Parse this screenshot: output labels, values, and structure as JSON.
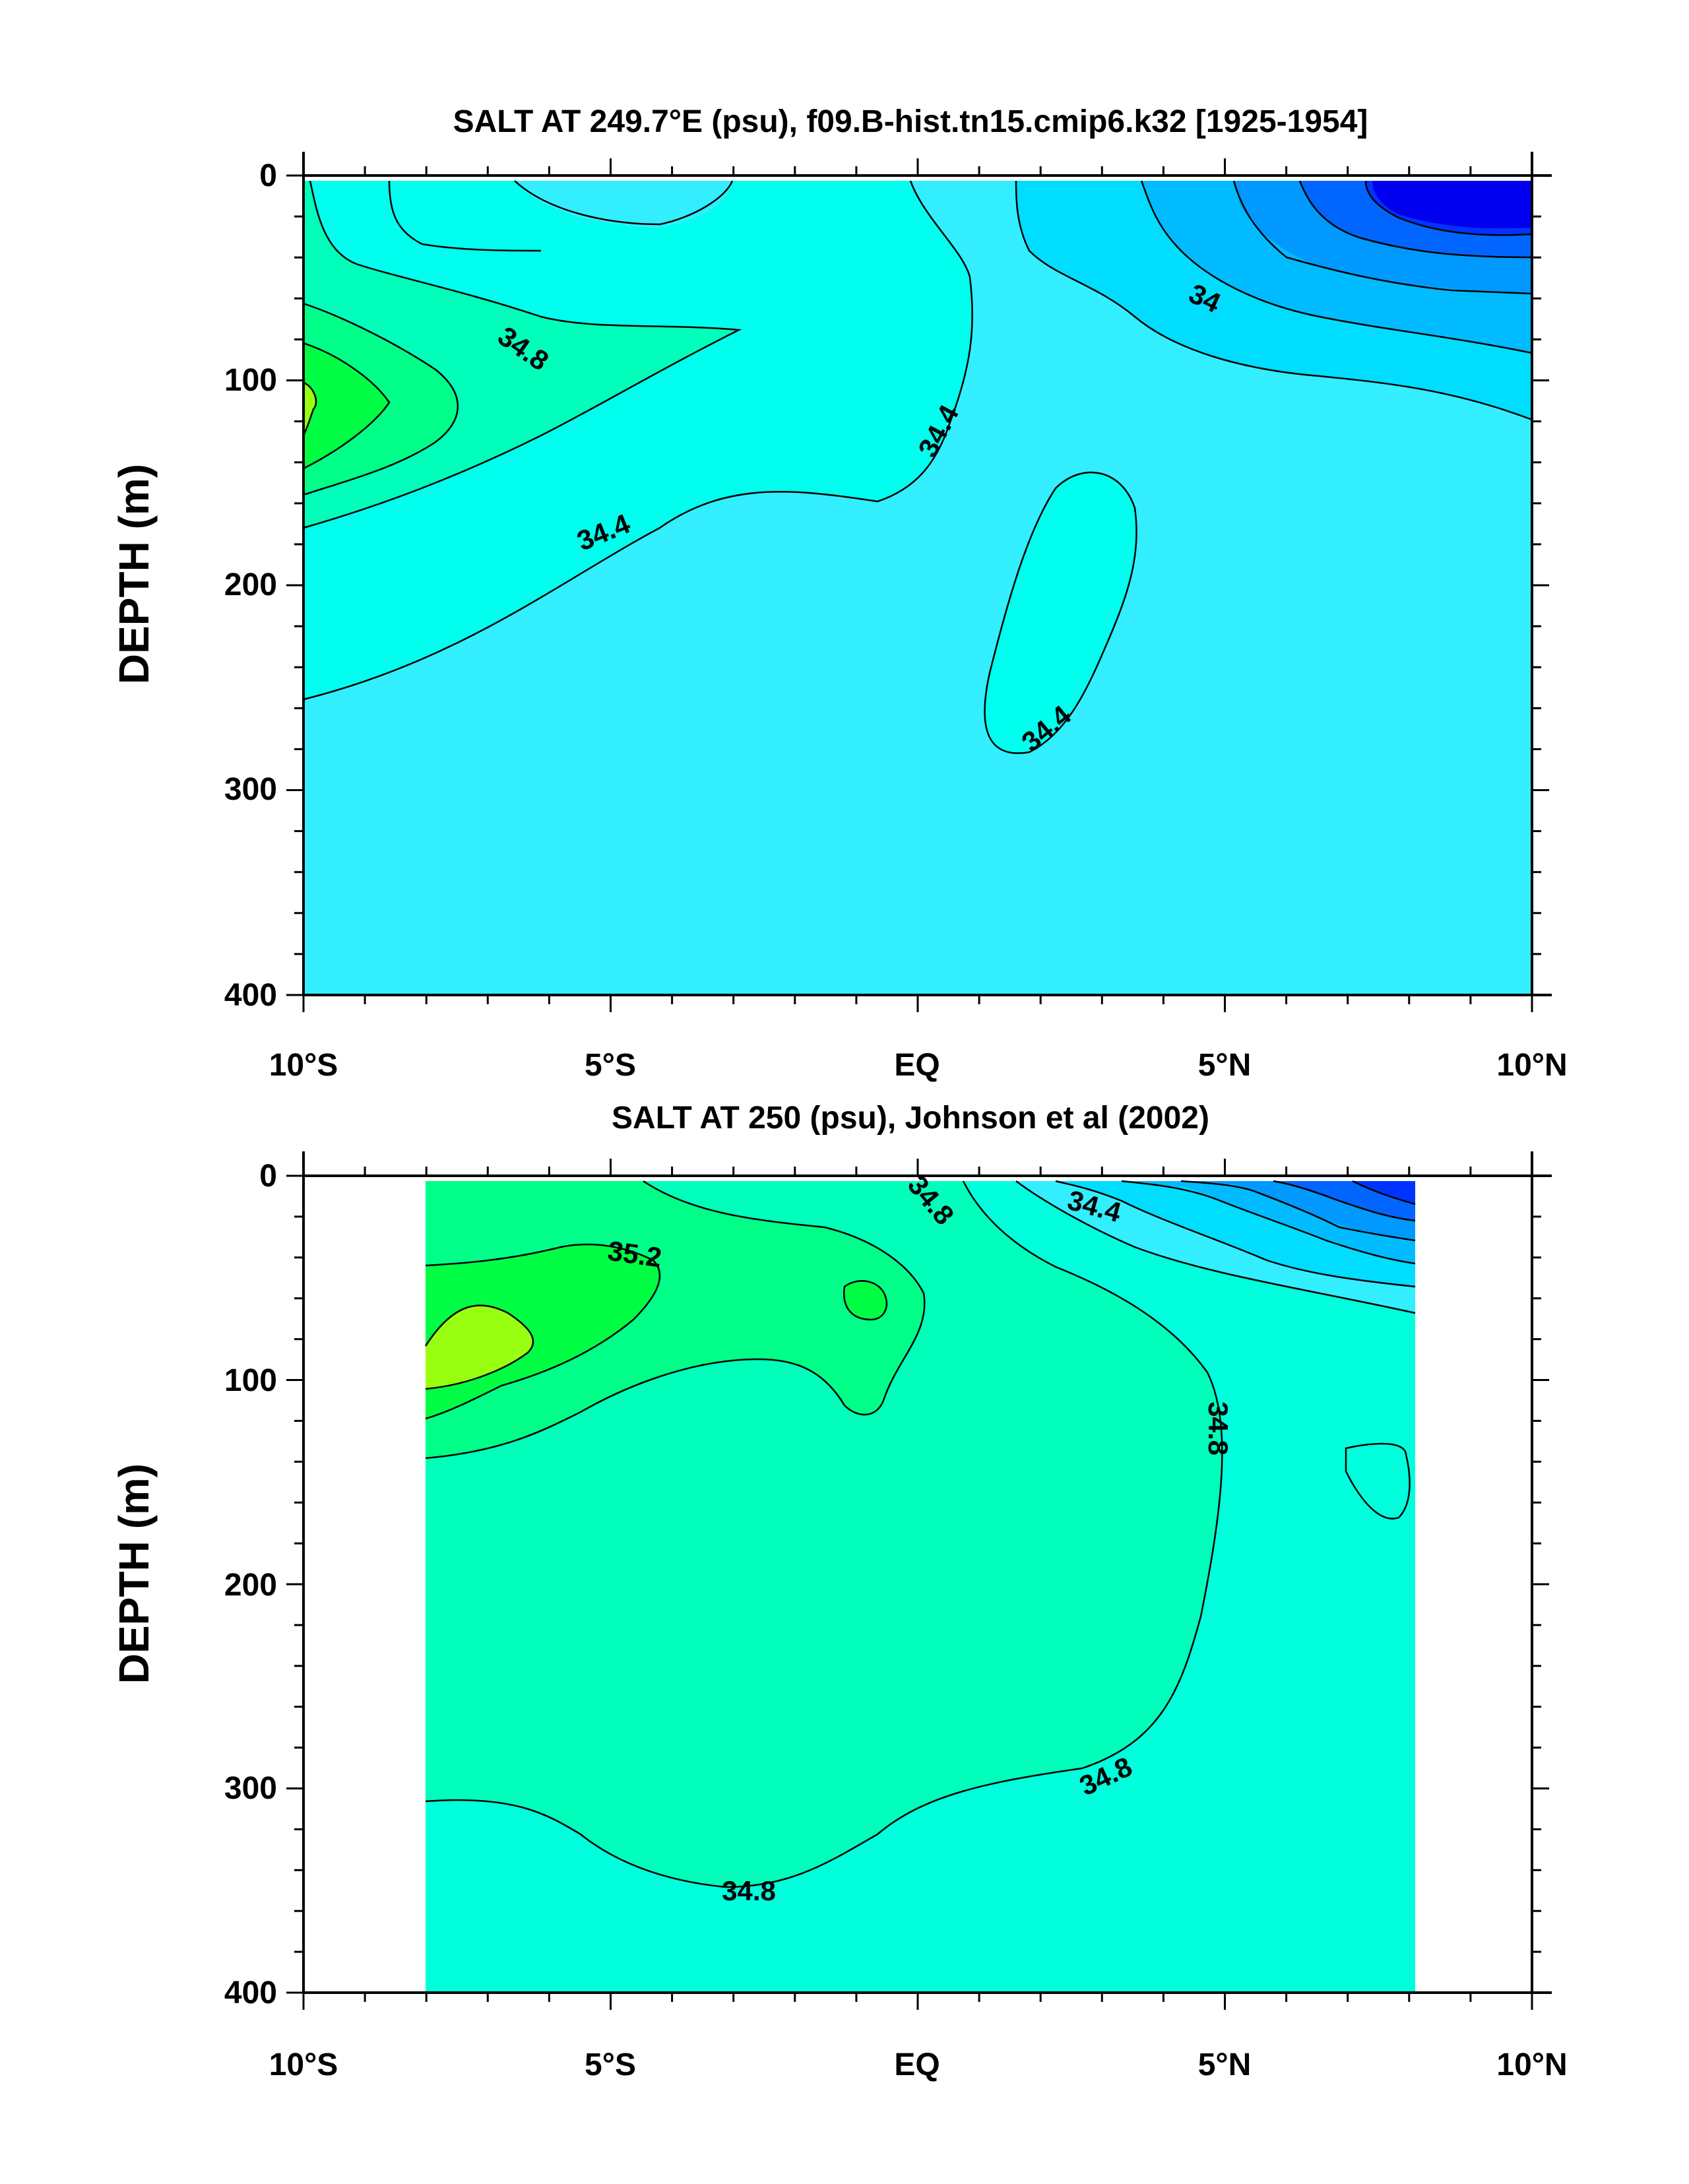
{
  "chart_data": [
    {
      "type": "contour",
      "title": "SALT AT 249.7°E (psu), f09.B-hist.tn15.cmip6.k32 [1925-1954]",
      "xlabel": "",
      "ylabel": "DEPTH (m)",
      "x_ticks": [
        "10°S",
        "5°S",
        "EQ",
        "5°N",
        "10°N"
      ],
      "x_range": [
        -10,
        10
      ],
      "y_ticks": [
        "0",
        "100",
        "200",
        "300",
        "400"
      ],
      "y_range": [
        0,
        400
      ],
      "contour_interval": 0.2,
      "contour_labels": [
        {
          "text": "34.8",
          "lat": -7.0,
          "depth": 85,
          "angle": 35
        },
        {
          "text": "34.4",
          "lat": -5.0,
          "depth": 175,
          "angle": -22
        },
        {
          "text": "34.4",
          "lat": 0.5,
          "depth": 125,
          "angle": -62
        },
        {
          "text": "34.4",
          "lat": 2.3,
          "depth": 265,
          "angle": -40
        },
        {
          "text": "34",
          "lat": 4.7,
          "depth": 60,
          "angle": 25
        }
      ],
      "features": {
        "salinity_max": 35.4,
        "salinity_max_location": {
          "lat": -10,
          "depth": 110
        },
        "salinity_min": 33.2,
        "salinity_min_location": {
          "lat": 9,
          "depth": 15
        },
        "background_salinity": 34.5
      }
    },
    {
      "type": "contour",
      "title": "SALT AT 250 (psu), Johnson et al (2002)",
      "xlabel": "",
      "ylabel": "DEPTH (m)",
      "x_ticks": [
        "10°S",
        "5°S",
        "EQ",
        "5°N",
        "10°N"
      ],
      "x_range": [
        -10,
        10
      ],
      "y_ticks": [
        "0",
        "100",
        "200",
        "300",
        "400"
      ],
      "y_range": [
        0,
        400
      ],
      "data_extent_lat": [
        -8,
        8.2
      ],
      "contour_interval": 0.2,
      "contour_labels": [
        {
          "text": "35.2",
          "lat": -4.6,
          "depth": 42,
          "angle": 8
        },
        {
          "text": "34.8",
          "lat": 0.2,
          "depth": 20,
          "angle": 50
        },
        {
          "text": "34.4",
          "lat": 3.0,
          "depth": 20,
          "angle": 15
        },
        {
          "text": "34.8",
          "lat": -2.6,
          "depth": 350,
          "angle": 0
        },
        {
          "text": "34.8",
          "lat": 3.2,
          "depth": 292,
          "angle": -25
        },
        {
          "text": "34.8",
          "lat": 4.9,
          "depth": 124,
          "angle": 90
        }
      ],
      "features": {
        "salinity_max": 35.4,
        "salinity_max_location": {
          "lat": -8,
          "depth": 90
        },
        "salinity_min": 33.4,
        "salinity_min_location": {
          "lat": 7.5,
          "depth": 5
        },
        "background_salinity": 34.7
      }
    }
  ],
  "colors": {
    "s34_4": "#33eeff",
    "s34_6": "#00ffee",
    "s34_8": "#00ffbb",
    "s35_0": "#00ff88",
    "s35_2": "#00ff44",
    "s35_4": "#99ff11",
    "s34_2": "#00ddff",
    "s34_0": "#00bbff",
    "s33_8": "#0099ff",
    "s33_6": "#0066ff",
    "s33_4": "#0033ff",
    "s33_2": "#0000ee"
  }
}
